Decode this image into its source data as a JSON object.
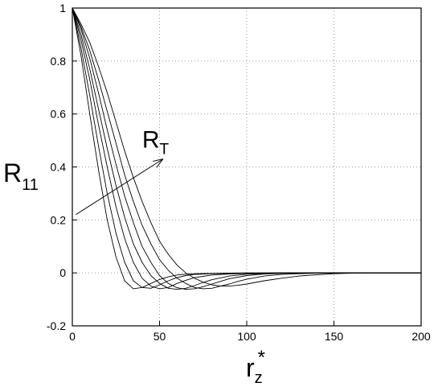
{
  "chart_data": {
    "type": "line",
    "title": "",
    "xlabel": {
      "main": "r",
      "sub": "z",
      "sup": "*"
    },
    "ylabel": {
      "main": "R",
      "sub": "11"
    },
    "xlim": [
      0,
      200
    ],
    "ylim": [
      -0.2,
      1.0
    ],
    "xticks": [
      0,
      50,
      100,
      150,
      200
    ],
    "yticks": [
      -0.2,
      0,
      0.2,
      0.4,
      0.6,
      0.8,
      1.0
    ],
    "xtick_labels": [
      "0",
      "50",
      "100",
      "150",
      "200"
    ],
    "ytick_labels": [
      "-0.2",
      "0",
      "0.2",
      "0.4",
      "0.6",
      "0.8",
      "1"
    ],
    "grid": true,
    "line_color": "#000000",
    "grid_color": "#9a9a9a",
    "annotation": {
      "text": {
        "main": "R",
        "sub": "T"
      },
      "arrow_from": {
        "x": 2,
        "y": 0.22
      },
      "arrow_to": {
        "x": 52,
        "y": 0.43
      }
    },
    "series": [
      {
        "x": [
          0,
          5,
          10,
          15,
          20,
          25,
          30,
          35,
          40,
          45,
          50,
          55,
          60,
          65,
          70,
          80,
          90,
          100,
          120,
          140,
          160,
          180,
          200
        ],
        "y": [
          1.0,
          0.82,
          0.6,
          0.39,
          0.2,
          0.06,
          -0.03,
          -0.06,
          -0.055,
          -0.04,
          -0.025,
          -0.015,
          -0.008,
          -0.005,
          -0.003,
          -0.002,
          -0.001,
          0,
          0,
          0,
          0,
          0,
          0
        ]
      },
      {
        "x": [
          0,
          5,
          10,
          15,
          20,
          25,
          30,
          35,
          40,
          45,
          50,
          55,
          60,
          65,
          70,
          80,
          90,
          100,
          120,
          140,
          160,
          180,
          200
        ],
        "y": [
          1.0,
          0.85,
          0.67,
          0.48,
          0.3,
          0.15,
          0.04,
          -0.03,
          -0.055,
          -0.058,
          -0.045,
          -0.03,
          -0.018,
          -0.01,
          -0.006,
          -0.003,
          -0.002,
          -0.001,
          0,
          0,
          0,
          0,
          0
        ]
      },
      {
        "x": [
          0,
          5,
          10,
          15,
          20,
          25,
          30,
          35,
          40,
          45,
          50,
          55,
          60,
          65,
          70,
          80,
          90,
          100,
          120,
          140,
          160,
          180,
          200
        ],
        "y": [
          1.0,
          0.88,
          0.73,
          0.56,
          0.4,
          0.25,
          0.13,
          0.04,
          -0.02,
          -0.05,
          -0.06,
          -0.055,
          -0.04,
          -0.028,
          -0.018,
          -0.008,
          -0.004,
          -0.002,
          0,
          0,
          0,
          0,
          0
        ]
      },
      {
        "x": [
          0,
          5,
          10,
          15,
          20,
          25,
          30,
          35,
          40,
          45,
          50,
          55,
          60,
          65,
          70,
          75,
          80,
          90,
          100,
          110,
          120,
          140,
          160,
          180,
          200
        ],
        "y": [
          1.0,
          0.9,
          0.77,
          0.62,
          0.47,
          0.33,
          0.21,
          0.11,
          0.04,
          -0.01,
          -0.04,
          -0.058,
          -0.062,
          -0.058,
          -0.048,
          -0.036,
          -0.026,
          -0.012,
          -0.005,
          -0.002,
          -0.001,
          0,
          0,
          0,
          0
        ]
      },
      {
        "x": [
          0,
          5,
          10,
          15,
          20,
          25,
          30,
          35,
          40,
          45,
          50,
          55,
          60,
          65,
          70,
          75,
          80,
          85,
          90,
          100,
          110,
          120,
          140,
          160,
          180,
          200
        ],
        "y": [
          1.0,
          0.92,
          0.81,
          0.68,
          0.54,
          0.41,
          0.29,
          0.19,
          0.1,
          0.04,
          -0.01,
          -0.04,
          -0.056,
          -0.062,
          -0.06,
          -0.052,
          -0.042,
          -0.032,
          -0.022,
          -0.01,
          -0.004,
          -0.002,
          0,
          0,
          0,
          0
        ]
      },
      {
        "x": [
          0,
          5,
          10,
          15,
          20,
          25,
          30,
          35,
          40,
          45,
          50,
          55,
          60,
          65,
          70,
          75,
          80,
          85,
          90,
          95,
          100,
          110,
          120,
          130,
          140,
          160,
          180,
          200
        ],
        "y": [
          1.0,
          0.93,
          0.84,
          0.73,
          0.61,
          0.49,
          0.37,
          0.27,
          0.18,
          0.11,
          0.05,
          0.01,
          -0.02,
          -0.04,
          -0.055,
          -0.06,
          -0.058,
          -0.05,
          -0.042,
          -0.032,
          -0.024,
          -0.012,
          -0.006,
          -0.003,
          -0.001,
          0,
          0,
          0
        ]
      },
      {
        "x": [
          0,
          5,
          10,
          15,
          20,
          25,
          30,
          35,
          40,
          45,
          50,
          55,
          60,
          65,
          70,
          75,
          80,
          85,
          90,
          95,
          100,
          110,
          120,
          130,
          140,
          150,
          160,
          170,
          180,
          200
        ],
        "y": [
          1.0,
          0.94,
          0.87,
          0.78,
          0.68,
          0.57,
          0.46,
          0.36,
          0.27,
          0.19,
          0.12,
          0.07,
          0.03,
          0.0,
          -0.02,
          -0.035,
          -0.045,
          -0.05,
          -0.05,
          -0.047,
          -0.042,
          -0.03,
          -0.02,
          -0.012,
          -0.007,
          -0.003,
          -0.001,
          0,
          0,
          0
        ]
      }
    ]
  }
}
